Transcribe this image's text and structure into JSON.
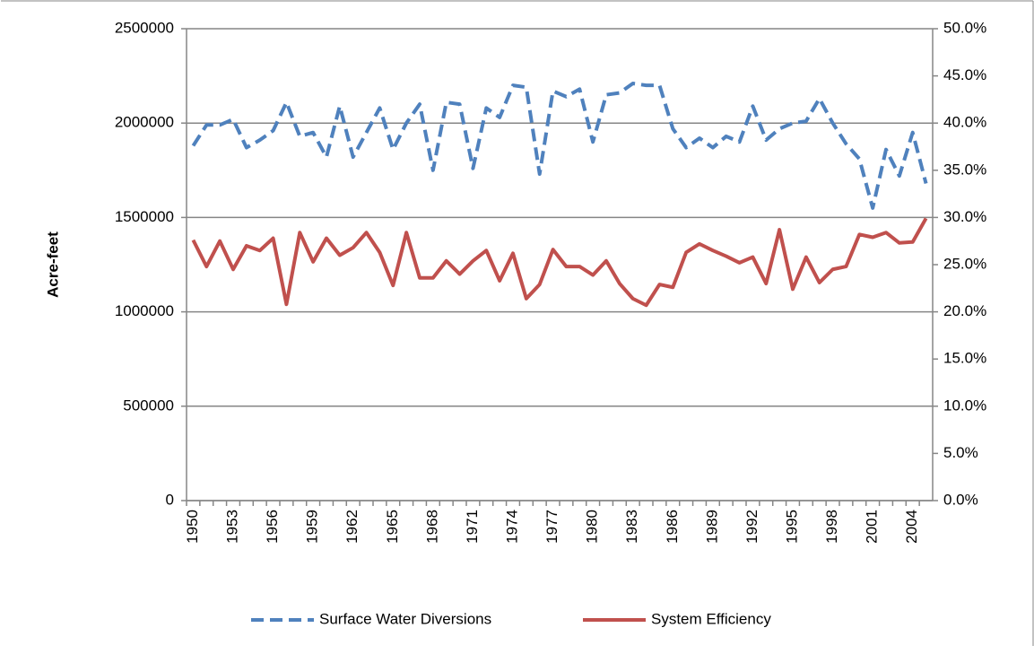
{
  "chart_data": {
    "type": "line",
    "y_label": "Acre-feet",
    "categories": [
      "1950",
      null,
      null,
      "1953",
      null,
      null,
      "1956",
      null,
      null,
      "1959",
      null,
      null,
      "1962",
      null,
      null,
      "1965",
      null,
      null,
      "1968",
      null,
      null,
      "1971",
      null,
      null,
      "1974",
      null,
      null,
      "1977",
      null,
      null,
      "1980",
      null,
      null,
      "1983",
      null,
      null,
      "1986",
      null,
      null,
      "1989",
      null,
      null,
      "1992",
      null,
      null,
      "1995",
      null,
      null,
      "1998",
      null,
      null,
      "2001",
      null,
      null,
      "2004",
      null
    ],
    "ylim": [
      0,
      2500000
    ],
    "yticks": [
      0,
      500000,
      1000000,
      1500000,
      2000000,
      2500000
    ],
    "y2lim": [
      0,
      50
    ],
    "y2ticks": [
      {
        "value": 0,
        "label": "0.0%"
      },
      {
        "value": 5,
        "label": "5.0%"
      },
      {
        "value": 10,
        "label": "10.0%"
      },
      {
        "value": 15,
        "label": "15.0%"
      },
      {
        "value": 20,
        "label": "20.0%"
      },
      {
        "value": 25,
        "label": "25.0%"
      },
      {
        "value": 30,
        "label": "30.0%"
      },
      {
        "value": 35,
        "label": "35.0%"
      },
      {
        "value": 40,
        "label": "40.0%"
      },
      {
        "value": 45,
        "label": "45.0%"
      },
      {
        "value": 50,
        "label": "50.0%"
      }
    ],
    "grid": true,
    "legend": "bottom",
    "series": [
      {
        "name": "Surface Water Diversions",
        "color": "#4f81bd",
        "dashed": true,
        "values": [
          1880000,
          1990000,
          1990000,
          2020000,
          1870000,
          1910000,
          1960000,
          2110000,
          1930000,
          1950000,
          1820000,
          2090000,
          1820000,
          1950000,
          2080000,
          1860000,
          2000000,
          2100000,
          1750000,
          2110000,
          2100000,
          1760000,
          2080000,
          2030000,
          2200000,
          2190000,
          1730000,
          2170000,
          2140000,
          2180000,
          1900000,
          2150000,
          2160000,
          2210000,
          2200000,
          2200000,
          1970000,
          1870000,
          1920000,
          1870000,
          1930000,
          1900000,
          2090000,
          1910000,
          1970000,
          2000000,
          2010000,
          2130000,
          2000000,
          1890000,
          1810000,
          1550000,
          1860000,
          1720000,
          1950000,
          1680000
        ]
      },
      {
        "name": "System Efficiency",
        "color": "#c0504d",
        "axis": "y2",
        "values": [
          27.6,
          24.8,
          27.5,
          24.5,
          27.0,
          26.5,
          27.8,
          20.8,
          28.4,
          25.3,
          27.8,
          26.0,
          26.8,
          28.4,
          26.3,
          22.8,
          28.4,
          23.6,
          23.6,
          25.4,
          24.0,
          25.4,
          26.5,
          23.3,
          26.2,
          21.4,
          22.9,
          26.6,
          24.8,
          24.8,
          23.9,
          25.4,
          23.0,
          21.4,
          20.7,
          22.9,
          22.6,
          26.3,
          27.2,
          26.5,
          25.9,
          25.2,
          25.8,
          23.0,
          28.7,
          22.4,
          25.8,
          23.1,
          24.5,
          24.8,
          28.2,
          27.9,
          28.4,
          27.3,
          27.4,
          29.9
        ]
      }
    ]
  }
}
